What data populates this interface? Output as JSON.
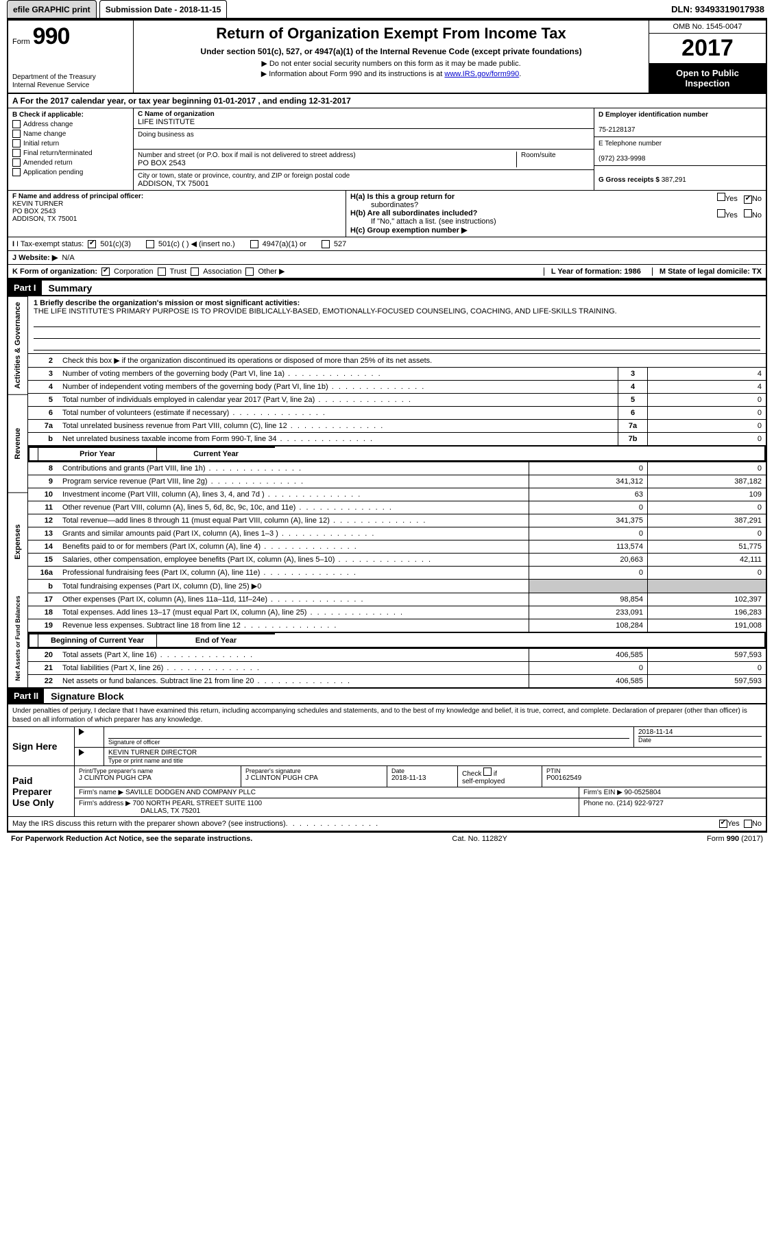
{
  "topbar": {
    "efile": "efile GRAPHIC print",
    "submission": "Submission Date - 2018-11-15",
    "dln": "DLN: 93493319017938"
  },
  "header": {
    "form_small": "Form",
    "form_big": "990",
    "dept1": "Department of the Treasury",
    "dept2": "Internal Revenue Service",
    "title": "Return of Organization Exempt From Income Tax",
    "sub1": "Under section 501(c), 527, or 4947(a)(1) of the Internal Revenue Code (except private foundations)",
    "arrow1": "▶ Do not enter social security numbers on this form as it may be made public.",
    "arrow2_pre": "▶ Information about Form 990 and its instructions is at ",
    "arrow2_link": "www.IRS.gov/form990",
    "arrow2_post": ".",
    "omb": "OMB No. 1545-0047",
    "year": "2017",
    "open1": "Open to Public",
    "open2": "Inspection"
  },
  "row_a": "A  For the 2017 calendar year, or tax year beginning 01-01-2017    , and ending 12-31-2017",
  "col_b": {
    "title": "B Check if applicable:",
    "items": [
      "Address change",
      "Name change",
      "Initial return",
      "Final return/terminated",
      "Amended return",
      "Application pending"
    ]
  },
  "col_c": {
    "c_label": "C Name of organization",
    "c_name": "LIFE INSTITUTE",
    "dba_label": "Doing business as",
    "addr_label": "Number and street (or P.O. box if mail is not delivered to street address)",
    "addr": "PO BOX 2543",
    "room_label": "Room/suite",
    "city_label": "City or town, state or province, country, and ZIP or foreign postal code",
    "city": "ADDISON, TX  75001"
  },
  "col_d": {
    "d_label": "D Employer identification number",
    "d_val": "75-2128137",
    "e_label": "E Telephone number",
    "e_val": "(972) 233-9998",
    "g_label": "G Gross receipts $",
    "g_val": "387,291"
  },
  "row_f": {
    "f_label": "F Name and address of principal officer:",
    "f_name": "KEVIN TURNER",
    "f_addr1": "PO BOX 2543",
    "f_addr2": "ADDISON, TX  75001"
  },
  "row_h": {
    "ha": "H(a)  Is this a group return for",
    "ha2": "subordinates?",
    "hb": "H(b)  Are all subordinates included?",
    "hb_note": "If \"No,\" attach a list. (see instructions)",
    "hc": "H(c)  Group exemption number ▶"
  },
  "row_i": {
    "label": "I  Tax-exempt status:",
    "o1": "501(c)(3)",
    "o2": "501(c) (  ) ◀ (insert no.)",
    "o3": "4947(a)(1) or",
    "o4": "527"
  },
  "row_j": {
    "label": "J  Website: ▶",
    "val": "N/A"
  },
  "row_k": {
    "label": "K Form of organization:",
    "o1": "Corporation",
    "o2": "Trust",
    "o3": "Association",
    "o4": "Other ▶",
    "l": "L Year of formation: 1986",
    "m": "M State of legal domicile: TX"
  },
  "part1": {
    "header": "Part I",
    "title": "Summary"
  },
  "mission": {
    "line1": "1  Briefly describe the organization's mission or most significant activities:",
    "text": "THE LIFE INSTITUTE'S PRIMARY PURPOSE IS TO PROVIDE BIBLICALLY-BASED, EMOTIONALLY-FOCUSED COUNSELING, COACHING, AND LIFE-SKILLS TRAINING."
  },
  "side_labels": {
    "gov": "Activities & Governance",
    "rev": "Revenue",
    "exp": "Expenses",
    "net": "Net Assets or Fund Balances"
  },
  "gov_lines": [
    {
      "n": "2",
      "d": "Check this box ▶        if the organization discontinued its operations or disposed of more than 25% of its net assets."
    },
    {
      "n": "3",
      "d": "Number of voting members of the governing body (Part VI, line 1a)",
      "box": "3",
      "v": "4"
    },
    {
      "n": "4",
      "d": "Number of independent voting members of the governing body (Part VI, line 1b)",
      "box": "4",
      "v": "4"
    },
    {
      "n": "5",
      "d": "Total number of individuals employed in calendar year 2017 (Part V, line 2a)",
      "box": "5",
      "v": "0"
    },
    {
      "n": "6",
      "d": "Total number of volunteers (estimate if necessary)",
      "box": "6",
      "v": "0"
    },
    {
      "n": "7a",
      "d": "Total unrelated business revenue from Part VIII, column (C), line 12",
      "box": "7a",
      "v": "0"
    },
    {
      "n": "b",
      "d": "Net unrelated business taxable income from Form 990-T, line 34",
      "box": "7b",
      "v": "0"
    }
  ],
  "fin_header": {
    "py": "Prior Year",
    "cy": "Current Year"
  },
  "rev_lines": [
    {
      "n": "8",
      "d": "Contributions and grants (Part VIII, line 1h)",
      "py": "0",
      "cy": "0"
    },
    {
      "n": "9",
      "d": "Program service revenue (Part VIII, line 2g)",
      "py": "341,312",
      "cy": "387,182"
    },
    {
      "n": "10",
      "d": "Investment income (Part VIII, column (A), lines 3, 4, and 7d )",
      "py": "63",
      "cy": "109"
    },
    {
      "n": "11",
      "d": "Other revenue (Part VIII, column (A), lines 5, 6d, 8c, 9c, 10c, and 11e)",
      "py": "0",
      "cy": "0"
    },
    {
      "n": "12",
      "d": "Total revenue—add lines 8 through 11 (must equal Part VIII, column (A), line 12)",
      "py": "341,375",
      "cy": "387,291"
    }
  ],
  "exp_lines": [
    {
      "n": "13",
      "d": "Grants and similar amounts paid (Part IX, column (A), lines 1–3 )",
      "py": "0",
      "cy": "0"
    },
    {
      "n": "14",
      "d": "Benefits paid to or for members (Part IX, column (A), line 4)",
      "py": "113,574",
      "cy": "51,775"
    },
    {
      "n": "15",
      "d": "Salaries, other compensation, employee benefits (Part IX, column (A), lines 5–10)",
      "py": "20,663",
      "cy": "42,111"
    },
    {
      "n": "16a",
      "d": "Professional fundraising fees (Part IX, column (A), line 11e)",
      "py": "0",
      "cy": "0"
    },
    {
      "n": "b",
      "d": "Total fundraising expenses (Part IX, column (D), line 25) ▶0",
      "py": "",
      "cy": "",
      "shade": true
    },
    {
      "n": "17",
      "d": "Other expenses (Part IX, column (A), lines 11a–11d, 11f–24e)",
      "py": "98,854",
      "cy": "102,397"
    },
    {
      "n": "18",
      "d": "Total expenses. Add lines 13–17 (must equal Part IX, column (A), line 25)",
      "py": "233,091",
      "cy": "196,283"
    },
    {
      "n": "19",
      "d": "Revenue less expenses. Subtract line 18 from line 12",
      "py": "108,284",
      "cy": "191,008"
    }
  ],
  "net_header": {
    "py": "Beginning of Current Year",
    "cy": "End of Year"
  },
  "net_lines": [
    {
      "n": "20",
      "d": "Total assets (Part X, line 16)",
      "py": "406,585",
      "cy": "597,593"
    },
    {
      "n": "21",
      "d": "Total liabilities (Part X, line 26)",
      "py": "0",
      "cy": "0"
    },
    {
      "n": "22",
      "d": "Net assets or fund balances. Subtract line 21 from line 20",
      "py": "406,585",
      "cy": "597,593"
    }
  ],
  "part2": {
    "header": "Part II",
    "title": "Signature Block"
  },
  "sig_intro": "Under penalties of perjury, I declare that I have examined this return, including accompanying schedules and statements, and to the best of my knowledge and belief, it is true, correct, and complete. Declaration of preparer (other than officer) is based on all information of which preparer has any knowledge.",
  "sign_here": {
    "label": "Sign Here",
    "sig_of": "Signature of officer",
    "date": "2018-11-14",
    "date_lbl": "Date",
    "name": "KEVIN TURNER  DIRECTOR",
    "name_lbl": "Type or print name and title"
  },
  "paid": {
    "label1": "Paid",
    "label2": "Preparer",
    "label3": "Use Only",
    "h1": "Print/Type preparer's name",
    "v1": "J CLINTON PUGH CPA",
    "h2": "Preparer's signature",
    "v2": "J CLINTON PUGH CPA",
    "h3": "Date",
    "v3": "2018-11-13",
    "h4a": "Check",
    "h4b": "if",
    "h4c": "self-employed",
    "h5": "PTIN",
    "v5": "P00162549",
    "firm_lbl": "Firm's name      ▶",
    "firm": "SAVILLE DODGEN AND COMPANY PLLC",
    "ein_lbl": "Firm's EIN ▶",
    "ein": "90-0525804",
    "addr_lbl": "Firm's address ▶",
    "addr1": "700 NORTH PEARL STREET SUITE 1100",
    "addr2": "DALLAS, TX  75201",
    "phone_lbl": "Phone no.",
    "phone": "(214) 922-9727"
  },
  "discuss": "May the IRS discuss this return with the preparer shown above? (see instructions)",
  "footer": {
    "left": "For Paperwork Reduction Act Notice, see the separate instructions.",
    "mid": "Cat. No. 11282Y",
    "right": "Form 990 (2017)"
  },
  "yes": "Yes",
  "no": "No"
}
